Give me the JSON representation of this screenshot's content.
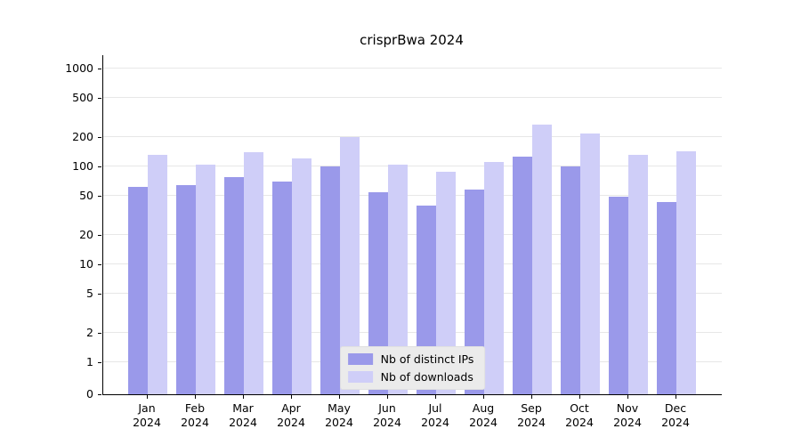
{
  "chart_data": {
    "type": "bar",
    "title": "crisprBwa 2024",
    "categories": [
      "Jan",
      "Feb",
      "Mar",
      "Apr",
      "May",
      "Jun",
      "Jul",
      "Aug",
      "Sep",
      "Oct",
      "Nov",
      "Dec"
    ],
    "year_label": "2024",
    "series": [
      {
        "name": "Nb of distinct IPs",
        "color": "#9a99ea",
        "values": [
          62,
          65,
          78,
          70,
          100,
          55,
          40,
          58,
          125,
          100,
          49,
          43
        ]
      },
      {
        "name": "Nb of downloads",
        "color": "#cfcef8",
        "values": [
          130,
          105,
          140,
          120,
          200,
          105,
          88,
          112,
          265,
          215,
          130,
          142
        ]
      }
    ],
    "y_ticks": [
      0,
      1,
      2,
      5,
      10,
      20,
      50,
      100,
      200,
      500,
      1000
    ],
    "y_scale": "log",
    "ylim": [
      0,
      1200
    ],
    "grid": true,
    "legend_position": "bottom-center"
  }
}
